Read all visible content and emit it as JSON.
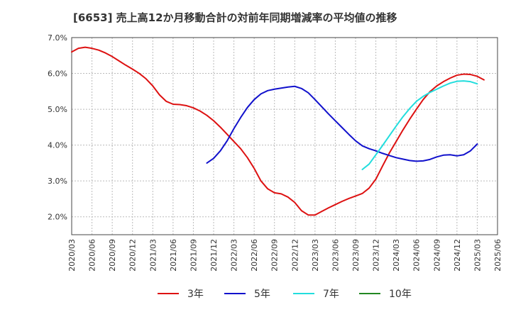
{
  "chart_data": {
    "type": "line",
    "title": "[6653]  売上高12か月移動合計の対前年同期増減率の平均値の推移",
    "xlabel": "",
    "ylabel": "",
    "ylim": [
      1.5,
      7.0
    ],
    "yticks": [
      2.0,
      3.0,
      4.0,
      5.0,
      6.0,
      7.0
    ],
    "ytick_labels": [
      "2.0%",
      "3.0%",
      "4.0%",
      "5.0%",
      "6.0%",
      "7.0%"
    ],
    "xticks": [
      "2020/03",
      "2020/06",
      "2020/09",
      "2020/12",
      "2021/03",
      "2021/06",
      "2021/09",
      "2021/12",
      "2022/03",
      "2022/06",
      "2022/09",
      "2022/12",
      "2023/03",
      "2023/06",
      "2023/09",
      "2023/12",
      "2024/03",
      "2024/06",
      "2024/09",
      "2024/12",
      "2025/03",
      "2025/06"
    ],
    "x_start": "2020/03",
    "x_end": "2025/06",
    "grid": true,
    "legend_position": "bottom",
    "series": [
      {
        "name": "3年",
        "color": "#dd1111",
        "start": "2020/03",
        "values": [
          6.6,
          6.7,
          6.73,
          6.7,
          6.65,
          6.57,
          6.47,
          6.35,
          6.23,
          6.12,
          6.0,
          5.85,
          5.65,
          5.4,
          5.22,
          5.14,
          5.13,
          5.1,
          5.04,
          4.95,
          4.83,
          4.68,
          4.5,
          4.3,
          4.1,
          3.9,
          3.65,
          3.35,
          3.0,
          2.78,
          2.67,
          2.64,
          2.55,
          2.4,
          2.17,
          2.05,
          2.05,
          2.15,
          2.25,
          2.34,
          2.43,
          2.51,
          2.58,
          2.65,
          2.8,
          3.05,
          3.42,
          3.78,
          4.1,
          4.42,
          4.72,
          5.0,
          5.27,
          5.49,
          5.65,
          5.77,
          5.87,
          5.95,
          5.98,
          5.97,
          5.92,
          5.82
        ]
      },
      {
        "name": "5年",
        "color": "#1111cc",
        "start": "2021/11",
        "values": [
          3.5,
          3.63,
          3.84,
          4.12,
          4.46,
          4.77,
          5.05,
          5.27,
          5.43,
          5.52,
          5.56,
          5.59,
          5.62,
          5.64,
          5.58,
          5.46,
          5.27,
          5.07,
          4.87,
          4.68,
          4.49,
          4.3,
          4.12,
          3.98,
          3.9,
          3.84,
          3.77,
          3.71,
          3.65,
          3.61,
          3.57,
          3.55,
          3.56,
          3.6,
          3.67,
          3.72,
          3.73,
          3.7,
          3.73,
          3.84,
          4.03
        ]
      },
      {
        "name": "7年",
        "color": "#22dddd",
        "start": "2023/10",
        "values": [
          3.32,
          3.47,
          3.73,
          3.99,
          4.26,
          4.53,
          4.79,
          5.02,
          5.22,
          5.36,
          5.47,
          5.56,
          5.65,
          5.73,
          5.78,
          5.79,
          5.77,
          5.71
        ]
      },
      {
        "name": "10年",
        "color": "#228822",
        "start": "2025/03",
        "values": []
      }
    ]
  }
}
